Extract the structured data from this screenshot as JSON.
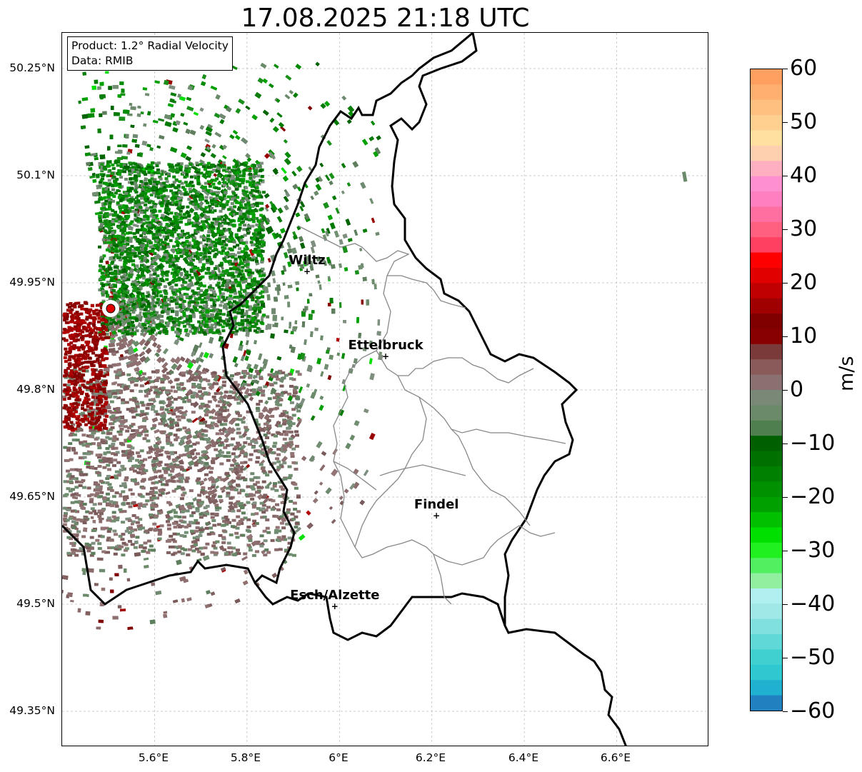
{
  "title": "17.08.2025 21:18 UTC",
  "info": {
    "product": "Product: 1.2° Radial Velocity",
    "data_source": "Data: RMIB"
  },
  "map": {
    "lat_ticks": [
      "50.25°N",
      "50.1°N",
      "49.95°N",
      "49.8°N",
      "49.65°N",
      "49.5°N",
      "49.35°N"
    ],
    "lon_ticks": [
      "5.6°E",
      "5.8°E",
      "6°E",
      "6.2°E",
      "6.4°E",
      "6.6°E"
    ],
    "lon_range": [
      5.4,
      6.8
    ],
    "lat_range": [
      49.3,
      50.3
    ],
    "cities": [
      {
        "name": "Wiltz",
        "lon": 5.93,
        "lat": 49.966
      },
      {
        "name": "Ettelbruck",
        "lon": 6.1,
        "lat": 49.847
      },
      {
        "name": "Findel",
        "lon": 6.21,
        "lat": 49.624
      },
      {
        "name": "Esch/Alzette",
        "lon": 5.99,
        "lat": 49.497
      }
    ],
    "radar_site": {
      "lon": 5.505,
      "lat": 49.914
    }
  },
  "colorbar": {
    "label": "m/s",
    "ticks": [
      "60",
      "50",
      "40",
      "30",
      "20",
      "10",
      "0",
      "−10",
      "−20",
      "−30",
      "−40",
      "−50",
      "−60"
    ],
    "range": [
      -60,
      60
    ],
    "colors_top_to_bottom": [
      "#ffa060",
      "#ffb070",
      "#ffc080",
      "#ffd090",
      "#ffe0a0",
      "#ffd0b0",
      "#ffb0c0",
      "#ff90d0",
      "#ff80c0",
      "#ff70a0",
      "#ff6080",
      "#ff4060",
      "#ff0000",
      "#e00000",
      "#c00000",
      "#a00000",
      "#800000",
      "#880000",
      "#7a3a3a",
      "#8a5a5a",
      "#8a7070",
      "#7a8878",
      "#6a8a6a",
      "#4f7f4f",
      "#006000",
      "#007000",
      "#008000",
      "#009000",
      "#00a000",
      "#00c000",
      "#00e000",
      "#20f020",
      "#50f060",
      "#90f0a0",
      "#b0f0f0",
      "#a0e8e8",
      "#80e0e0",
      "#60d8d8",
      "#40d0d0",
      "#30c8d0",
      "#20b0d0",
      "#2080c0"
    ]
  }
}
